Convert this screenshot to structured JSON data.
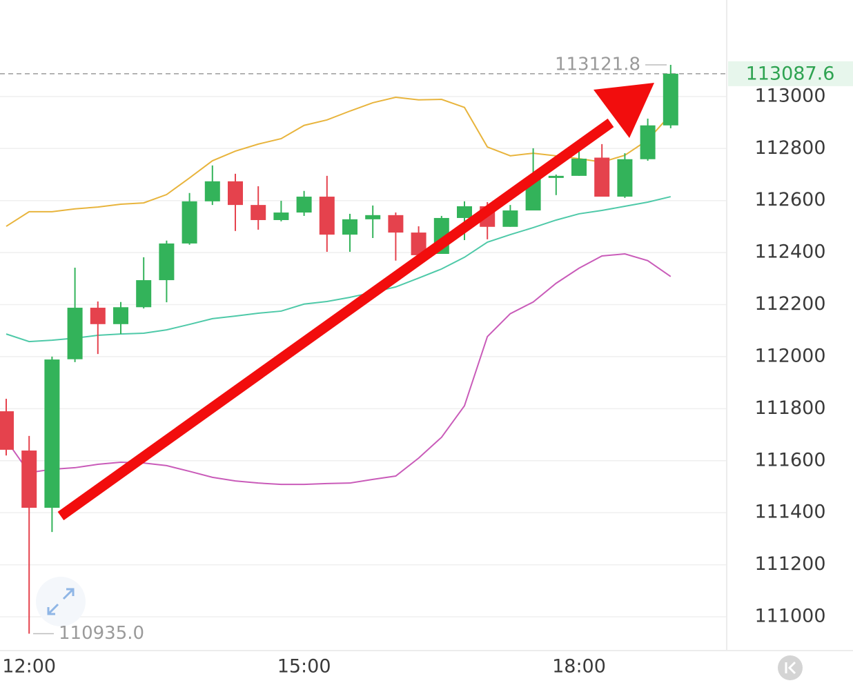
{
  "chart_data": {
    "type": "candlestick",
    "categories": [
      null,
      "12:00",
      null,
      null,
      null,
      null,
      null,
      null,
      null,
      null,
      null,
      null,
      null,
      "15:00",
      null,
      null,
      null,
      null,
      null,
      null,
      null,
      null,
      null,
      null,
      null,
      "18:00",
      null,
      null,
      null,
      null
    ],
    "open": [
      111790,
      111639,
      111419,
      111990,
      112188,
      112125,
      112190,
      112294,
      112435,
      112597,
      112674,
      112583,
      112525,
      112554,
      112615,
      112469,
      112528,
      112544,
      112477,
      112395,
      112533,
      112578,
      112499,
      112562,
      112687,
      112695,
      112765,
      112615,
      112759,
      112889
    ],
    "high": [
      111838,
      111695,
      112000,
      112342,
      112212,
      112210,
      112382,
      112446,
      112629,
      112735,
      112703,
      112655,
      112599,
      112637,
      112695,
      112549,
      112581,
      112554,
      112501,
      112541,
      112597,
      112594,
      112583,
      112801,
      112700,
      112809,
      112817,
      112782,
      112915,
      113121.8
    ],
    "low": [
      111620,
      110935,
      111326,
      111979,
      112010,
      112087,
      112185,
      112209,
      112430,
      112583,
      112483,
      112488,
      112520,
      112541,
      112403,
      112403,
      112456,
      112369,
      112358,
      112395,
      112448,
      112451,
      112499,
      112562,
      112621,
      112695,
      112615,
      112610,
      112753,
      112878
    ],
    "close": [
      111642,
      111419,
      111989,
      112188,
      112125,
      112190,
      112294,
      112435,
      112597,
      112674,
      112583,
      112525,
      112554,
      112615,
      112469,
      112528,
      112544,
      112477,
      112390,
      112533,
      112578,
      112499,
      112562,
      112687,
      112695,
      112761,
      112615,
      112759,
      112889,
      113087.6
    ],
    "up_color": "#33b35a",
    "down_color": "#e5424d",
    "bands": [
      {
        "color": "#e8b43c",
        "values": [
          112501,
          112557,
          112557,
          112568,
          112575,
          112586,
          112591,
          112623,
          112687,
          112753,
          112790,
          112817,
          112838,
          112889,
          112910,
          112944,
          112976,
          112997,
          112987,
          112989,
          112958,
          112806,
          112772,
          112782,
          112772,
          112761,
          112748,
          112774,
          112833,
          112931
        ]
      },
      {
        "color": "#4ec9a8",
        "values": [
          112087,
          112058,
          112063,
          112071,
          112082,
          112087,
          112090,
          112103,
          112124,
          112146,
          112156,
          112167,
          112175,
          112202,
          112212,
          112228,
          112247,
          112268,
          112302,
          112337,
          112382,
          112440,
          112469,
          112496,
          112525,
          112549,
          112562,
          112578,
          112594,
          112615
        ]
      },
      {
        "color": "#c95bb9",
        "values": [
          111679,
          111554,
          111567,
          111573,
          111586,
          111594,
          111591,
          111581,
          111559,
          111536,
          111522,
          111514,
          111509,
          111509,
          111512,
          111514,
          111528,
          111541,
          111610,
          111690,
          111811,
          112077,
          112165,
          112210,
          112282,
          112340,
          112387,
          112395,
          112369,
          112308
        ]
      }
    ],
    "ylim": [
      110870,
      113371
    ],
    "yticks": [
      111000,
      111200,
      111400,
      111600,
      111800,
      112000,
      112200,
      112400,
      112600,
      112800,
      113000
    ],
    "grid": true,
    "max_label": {
      "value": 113121.8,
      "label": "113121.8"
    },
    "min_label": {
      "value": 110935.0,
      "label": "110935.0"
    },
    "last_price": {
      "value": 113087.6,
      "label": "113087.6"
    }
  }
}
